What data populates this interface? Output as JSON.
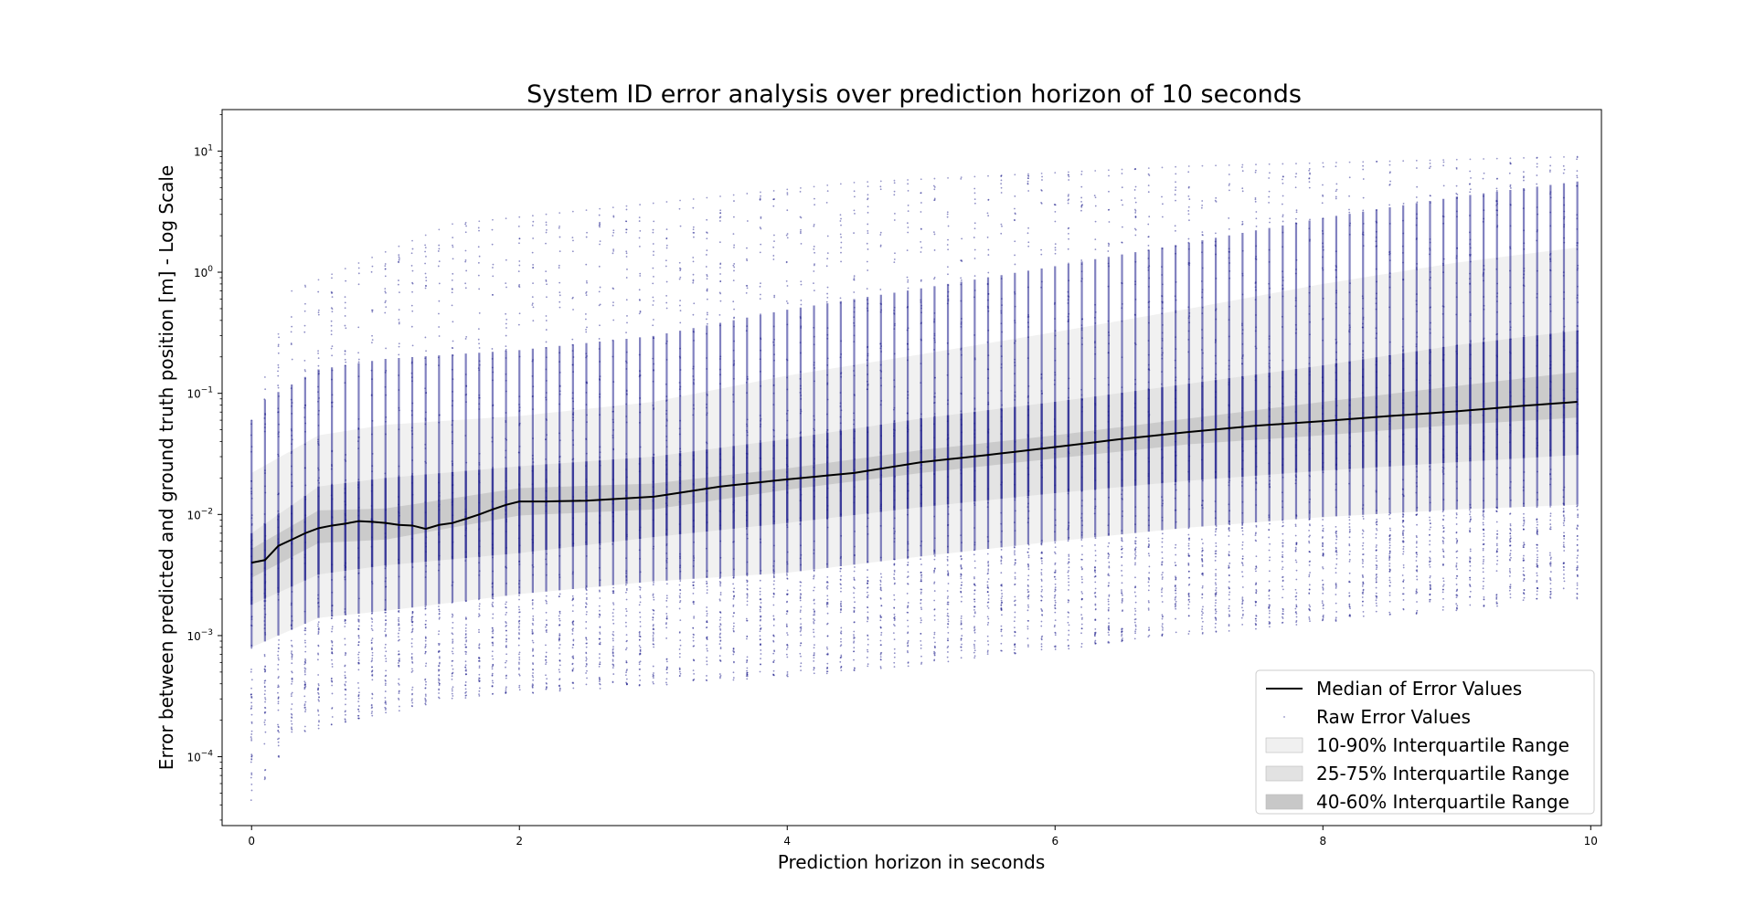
{
  "chart_data": {
    "type": "scatter",
    "title": "System ID error analysis over prediction horizon of 10 seconds",
    "xlabel": "Prediction horizon in seconds",
    "ylabel": "Error between predicted and ground truth position [m] - Log Scale",
    "xlim": [
      -0.22,
      10.08
    ],
    "ylim": [
      2.7e-05,
      22
    ],
    "yscale": "log",
    "grid": false,
    "legend_position": "lower-right",
    "x_ticks": [
      {
        "value": 0,
        "label": "0"
      },
      {
        "value": 2,
        "label": "2"
      },
      {
        "value": 4,
        "label": "4"
      },
      {
        "value": 6,
        "label": "6"
      },
      {
        "value": 8,
        "label": "8"
      },
      {
        "value": 10,
        "label": "10"
      }
    ],
    "y_ticks": [
      {
        "value": 0.0001,
        "base": "10",
        "exp": "−4"
      },
      {
        "value": 0.001,
        "base": "10",
        "exp": "−3"
      },
      {
        "value": 0.01,
        "base": "10",
        "exp": "−2"
      },
      {
        "value": 0.1,
        "base": "10",
        "exp": "−1"
      },
      {
        "value": 1,
        "base": "10",
        "exp": "0"
      },
      {
        "value": 10,
        "base": "10",
        "exp": "1"
      }
    ],
    "x_range": [
      0,
      9.9
    ],
    "x_step": 0.1,
    "median_line": {
      "name": "Median of Error Values",
      "color": "#000000",
      "x": [
        0,
        0.1,
        0.2,
        0.3,
        0.4,
        0.5,
        0.6,
        0.7,
        0.8,
        0.9,
        1.0,
        1.1,
        1.2,
        1.3,
        1.4,
        1.5,
        1.6,
        1.7,
        1.8,
        1.9,
        2.0,
        2.2,
        2.5,
        3.0,
        3.5,
        4.0,
        4.5,
        5.0,
        5.5,
        6.0,
        6.5,
        7.0,
        7.5,
        8.0,
        8.5,
        9.0,
        9.5,
        9.9
      ],
      "y": [
        0.004,
        0.0042,
        0.0055,
        0.0062,
        0.007,
        0.0077,
        0.0081,
        0.0084,
        0.0088,
        0.0087,
        0.0085,
        0.0082,
        0.0081,
        0.0076,
        0.0082,
        0.0085,
        0.0092,
        0.01,
        0.011,
        0.012,
        0.0128,
        0.0128,
        0.013,
        0.014,
        0.017,
        0.0195,
        0.022,
        0.027,
        0.031,
        0.036,
        0.042,
        0.048,
        0.054,
        0.059,
        0.065,
        0.071,
        0.079,
        0.085
      ]
    },
    "bands": [
      {
        "name": "10-90% Interquartile Range",
        "color": "#f0f0f0",
        "x": [
          0,
          0.5,
          1.0,
          2.0,
          3.0,
          4.0,
          5.0,
          6.0,
          7.0,
          8.0,
          9.0,
          9.9
        ],
        "low": [
          0.0008,
          0.0014,
          0.0016,
          0.0022,
          0.0028,
          0.0033,
          0.0045,
          0.006,
          0.0078,
          0.0095,
          0.011,
          0.012
        ],
        "high": [
          0.022,
          0.045,
          0.055,
          0.065,
          0.085,
          0.14,
          0.21,
          0.32,
          0.5,
          0.8,
          1.2,
          1.6
        ]
      },
      {
        "name": "25-75% Interquartile Range",
        "color": "#e2e2e2",
        "x": [
          0,
          0.5,
          1.0,
          2.0,
          3.0,
          4.0,
          5.0,
          6.0,
          7.0,
          8.0,
          9.0,
          9.9
        ],
        "low": [
          0.0018,
          0.0032,
          0.0038,
          0.0048,
          0.0065,
          0.0085,
          0.0115,
          0.015,
          0.019,
          0.023,
          0.027,
          0.031
        ],
        "high": [
          0.007,
          0.017,
          0.02,
          0.025,
          0.03,
          0.042,
          0.062,
          0.085,
          0.12,
          0.17,
          0.25,
          0.33
        ]
      },
      {
        "name": "40-60% Interquartile Range",
        "color": "#c8c8c8",
        "x": [
          0,
          0.5,
          1.0,
          2.0,
          3.0,
          4.0,
          5.0,
          6.0,
          7.0,
          8.0,
          9.0,
          9.9
        ],
        "low": [
          0.003,
          0.0058,
          0.0062,
          0.0098,
          0.011,
          0.016,
          0.022,
          0.029,
          0.038,
          0.045,
          0.055,
          0.063
        ],
        "high": [
          0.0052,
          0.0108,
          0.0112,
          0.0165,
          0.018,
          0.024,
          0.034,
          0.045,
          0.062,
          0.085,
          0.115,
          0.15
        ]
      }
    ],
    "scatter": {
      "name": "Raw Error Values",
      "color": "#1c1c8c",
      "x_range": [
        0,
        9.9
      ],
      "y_min_approx": [
        4e-05,
        0.00015,
        0.0003,
        0.0005,
        0.001,
        0.002
      ],
      "y_max_approx": [
        0.06,
        0.7,
        2.5,
        5.5,
        7.5,
        9
      ]
    },
    "legend": [
      {
        "key": "median",
        "label": "Median of Error Values"
      },
      {
        "key": "scatter",
        "label": "Raw Error Values"
      },
      {
        "key": "band10",
        "label": "10-90% Interquartile Range"
      },
      {
        "key": "band25",
        "label": "25-75% Interquartile Range"
      },
      {
        "key": "band40",
        "label": "40-60% Interquartile Range"
      }
    ]
  }
}
